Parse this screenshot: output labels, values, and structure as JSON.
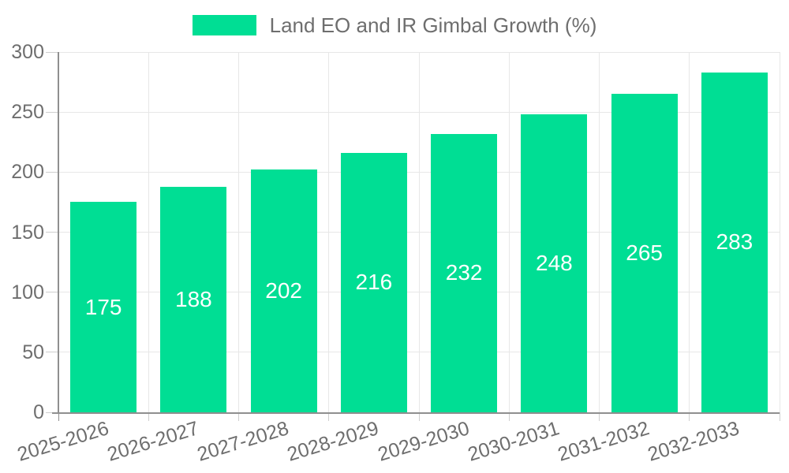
{
  "legend": {
    "label": "Land EO and IR Gimbal Growth (%)"
  },
  "colors": {
    "bar": "#00DE94",
    "text": "#6E6E6E",
    "grid": "#E7E7E7",
    "tick": "#CFCFCF",
    "axis": "#8F8F8F",
    "bar_label": "#FFFFFF",
    "background": "#FFFFFF"
  },
  "chart_data": {
    "type": "bar",
    "title": "Land EO and IR Gimbal Growth (%)",
    "categories": [
      "2025-2026",
      "2026-2027",
      "2027-2028",
      "2028-2029",
      "2029-2030",
      "2030-2031",
      "2031-2032",
      "2032-2033"
    ],
    "values": [
      175,
      188,
      202,
      216,
      232,
      248,
      265,
      283
    ],
    "bar_labels": [
      175,
      188,
      202,
      216,
      232,
      248,
      265,
      283
    ],
    "xlabel": "",
    "ylabel": "",
    "ylim": [
      0,
      300
    ],
    "yticks": [
      0,
      50,
      100,
      150,
      200,
      250,
      300
    ],
    "grid": true,
    "legend_position": "top",
    "bar_label_color": "white",
    "x_tick_rotation_deg": -17
  }
}
